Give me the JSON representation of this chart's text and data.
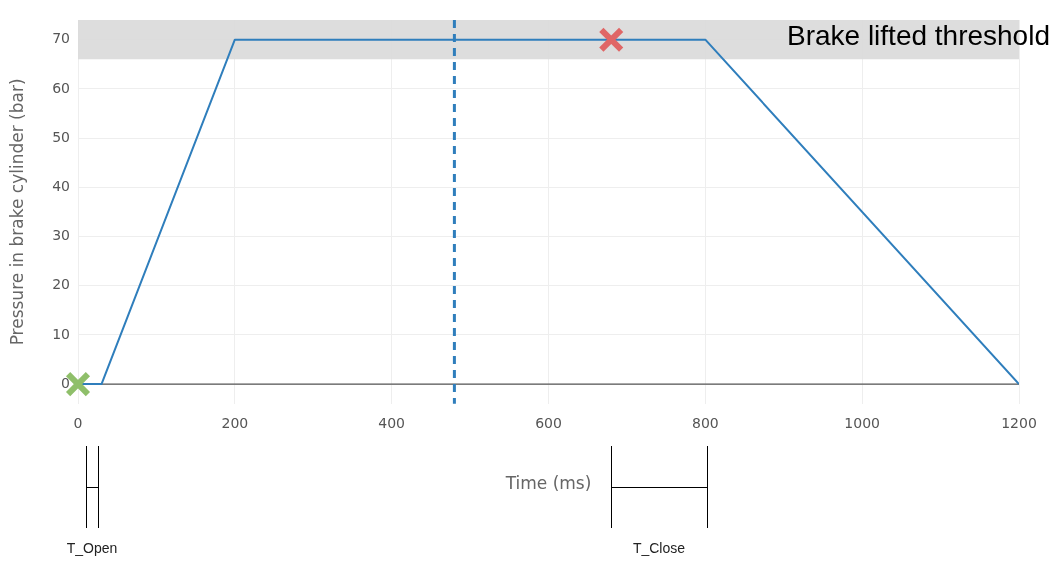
{
  "chart_data": {
    "type": "line",
    "xlabel": "Time (ms)",
    "ylabel": "Pressure in brake cylinder (bar)",
    "xlim": [
      0,
      1200
    ],
    "xticks": [
      0,
      200,
      400,
      600,
      800,
      1000,
      1200
    ],
    "ylim": [
      -4,
      74
    ],
    "yticks": [
      0,
      10,
      20,
      30,
      40,
      50,
      60,
      70
    ],
    "grid": true,
    "legend": false,
    "series": [
      {
        "color": "#2f7ebc",
        "x": [
          0,
          30,
          200,
          800,
          1200
        ],
        "values": [
          0,
          0,
          70,
          70,
          0
        ],
        "marker": "none"
      },
      {
        "type": "scatter",
        "color": "#8fbf6a",
        "x": [
          0
        ],
        "values": [
          0
        ],
        "marker": "cross"
      },
      {
        "type": "scatter",
        "color": "#e06666",
        "x": [
          680
        ],
        "values": [
          70
        ],
        "marker": "cross"
      }
    ],
    "ref_lines": [
      {
        "axis": "x",
        "value": 480,
        "color": "#2f7ebc",
        "line_style": "dashed"
      }
    ],
    "bands": [
      {
        "axis": "y",
        "from": 66,
        "to": 74,
        "label": "Brake lifted threshold",
        "color": "#d9d9d9"
      }
    ],
    "annotations": [
      "T_Open",
      "T_Close"
    ]
  }
}
